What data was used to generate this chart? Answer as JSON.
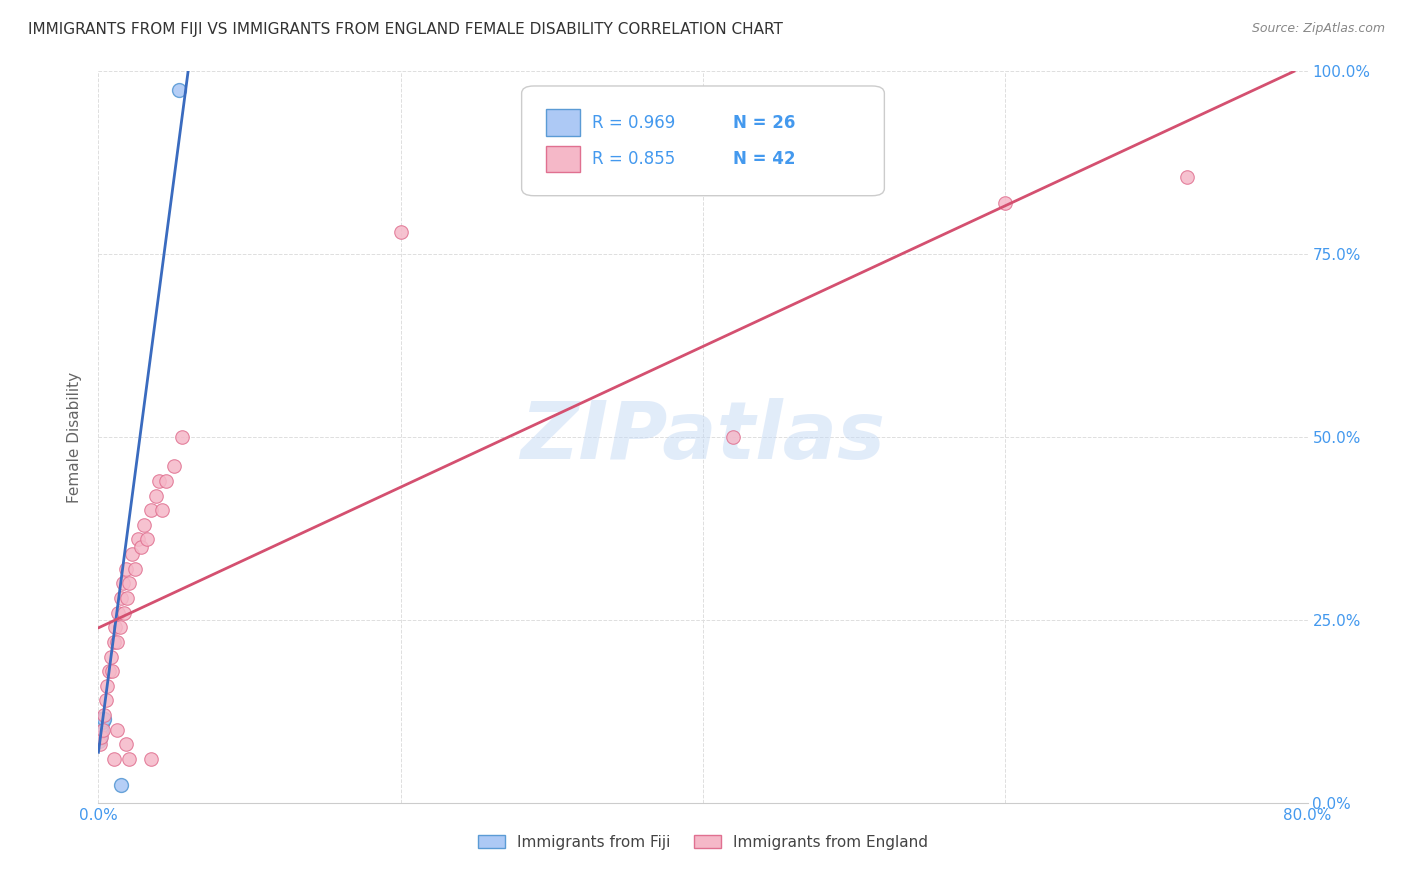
{
  "title": "IMMIGRANTS FROM FIJI VS IMMIGRANTS FROM ENGLAND FEMALE DISABILITY CORRELATION CHART",
  "source": "Source: ZipAtlas.com",
  "ylabel": "Female Disability",
  "watermark": "ZIPatlas",
  "xlim": [
    0.0,
    0.8
  ],
  "ylim": [
    0.0,
    1.0
  ],
  "fiji_color": "#adc9f5",
  "fiji_edge_color": "#5b9bd5",
  "fiji_line_color": "#3a6bbf",
  "england_color": "#f5b8c8",
  "england_edge_color": "#e07090",
  "england_line_color": "#d45070",
  "fiji_R": 0.969,
  "fiji_N": 26,
  "england_R": 0.855,
  "england_N": 42,
  "fiji_points": [
    [
      0.0005,
      0.085
    ],
    [
      0.0008,
      0.095
    ],
    [
      0.001,
      0.1
    ],
    [
      0.0012,
      0.105
    ],
    [
      0.0015,
      0.11
    ],
    [
      0.002,
      0.115
    ],
    [
      0.0008,
      0.09
    ],
    [
      0.001,
      0.1
    ],
    [
      0.0012,
      0.105
    ],
    [
      0.0015,
      0.108
    ],
    [
      0.002,
      0.112
    ],
    [
      0.0025,
      0.115
    ],
    [
      0.001,
      0.098
    ],
    [
      0.0015,
      0.102
    ],
    [
      0.002,
      0.108
    ],
    [
      0.0025,
      0.112
    ],
    [
      0.003,
      0.115
    ],
    [
      0.0008,
      0.088
    ],
    [
      0.001,
      0.092
    ],
    [
      0.0015,
      0.098
    ],
    [
      0.002,
      0.105
    ],
    [
      0.0025,
      0.11
    ],
    [
      0.003,
      0.112
    ],
    [
      0.0035,
      0.115
    ],
    [
      0.015,
      0.025
    ],
    [
      0.053,
      0.975
    ]
  ],
  "england_points": [
    [
      0.001,
      0.08
    ],
    [
      0.002,
      0.09
    ],
    [
      0.003,
      0.1
    ],
    [
      0.004,
      0.12
    ],
    [
      0.005,
      0.14
    ],
    [
      0.006,
      0.16
    ],
    [
      0.007,
      0.18
    ],
    [
      0.008,
      0.2
    ],
    [
      0.009,
      0.18
    ],
    [
      0.01,
      0.22
    ],
    [
      0.011,
      0.24
    ],
    [
      0.012,
      0.22
    ],
    [
      0.013,
      0.26
    ],
    [
      0.014,
      0.24
    ],
    [
      0.015,
      0.28
    ],
    [
      0.016,
      0.3
    ],
    [
      0.017,
      0.26
    ],
    [
      0.018,
      0.32
    ],
    [
      0.019,
      0.28
    ],
    [
      0.02,
      0.3
    ],
    [
      0.022,
      0.34
    ],
    [
      0.024,
      0.32
    ],
    [
      0.026,
      0.36
    ],
    [
      0.028,
      0.35
    ],
    [
      0.03,
      0.38
    ],
    [
      0.032,
      0.36
    ],
    [
      0.035,
      0.4
    ],
    [
      0.038,
      0.42
    ],
    [
      0.04,
      0.44
    ],
    [
      0.042,
      0.4
    ],
    [
      0.045,
      0.44
    ],
    [
      0.05,
      0.46
    ],
    [
      0.01,
      0.06
    ],
    [
      0.02,
      0.06
    ],
    [
      0.035,
      0.06
    ],
    [
      0.012,
      0.1
    ],
    [
      0.018,
      0.08
    ],
    [
      0.055,
      0.5
    ],
    [
      0.6,
      0.82
    ],
    [
      0.72,
      0.855
    ],
    [
      0.42,
      0.5
    ],
    [
      0.2,
      0.78
    ]
  ],
  "xticks": [
    0.0,
    0.2,
    0.4,
    0.6,
    0.8
  ],
  "xtick_labels_show": [
    "0.0%",
    "",
    "",
    "",
    "80.0%"
  ],
  "yticks_right": [
    0.0,
    0.25,
    0.5,
    0.75,
    1.0
  ],
  "ytick_labels_right": [
    "0.0%",
    "25.0%",
    "50.0%",
    "75.0%",
    "100.0%"
  ],
  "grid_color": "#dedede",
  "background_color": "#ffffff",
  "title_color": "#333333",
  "axis_label_color": "#666666",
  "tick_label_color": "#4499ee"
}
